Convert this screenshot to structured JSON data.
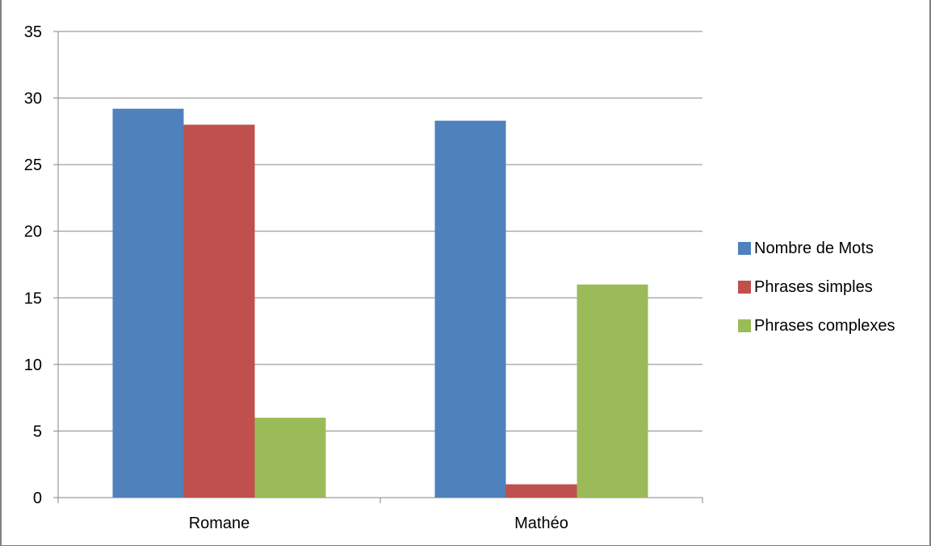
{
  "chart_data": {
    "type": "bar",
    "title": "",
    "xlabel": "",
    "ylabel": "",
    "categories": [
      "Romane",
      "Mathéo"
    ],
    "series": [
      {
        "name": "Nombre de Mots",
        "values": [
          29.2,
          28.3
        ],
        "color": "#4F81BD"
      },
      {
        "name": "Phrases simples",
        "values": [
          28,
          1
        ],
        "color": "#C0504D"
      },
      {
        "name": "Phrases complexes",
        "values": [
          6,
          16
        ],
        "color": "#9BBB59"
      }
    ],
    "ylim": [
      0,
      35
    ],
    "yticks": [
      "0",
      "5",
      "10",
      "15",
      "20",
      "25",
      "30",
      "35"
    ],
    "grid": true,
    "legend_position": "right"
  }
}
